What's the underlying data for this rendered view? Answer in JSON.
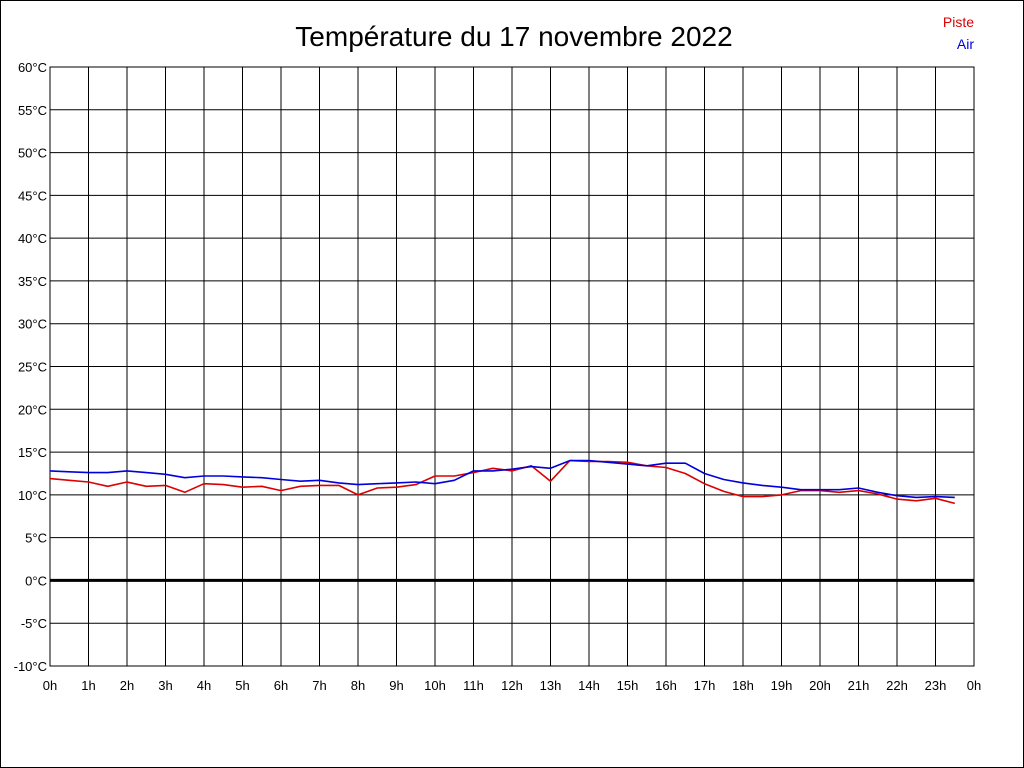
{
  "chart_data": {
    "type": "line",
    "title": "Température du 17 novembre 2022",
    "xlabel": "",
    "ylabel": "",
    "xlim": [
      0,
      24
    ],
    "ylim": [
      -10,
      60
    ],
    "grid": true,
    "legend_position": "top-right",
    "y_ticks": [
      -10,
      -5,
      0,
      5,
      10,
      15,
      20,
      25,
      30,
      35,
      40,
      45,
      50,
      55,
      60
    ],
    "y_tick_labels": [
      "-10°C",
      "-5°C",
      "0°C",
      "5°C",
      "10°C",
      "15°C",
      "20°C",
      "25°C",
      "30°C",
      "35°C",
      "40°C",
      "45°C",
      "50°C",
      "55°C",
      "60°C"
    ],
    "x_ticks": [
      0,
      1,
      2,
      3,
      4,
      5,
      6,
      7,
      8,
      9,
      10,
      11,
      12,
      13,
      14,
      15,
      16,
      17,
      18,
      19,
      20,
      21,
      22,
      23,
      24
    ],
    "x_tick_labels": [
      "0h",
      "1h",
      "2h",
      "3h",
      "4h",
      "5h",
      "6h",
      "7h",
      "8h",
      "9h",
      "10h",
      "11h",
      "12h",
      "13h",
      "14h",
      "15h",
      "16h",
      "17h",
      "18h",
      "19h",
      "20h",
      "21h",
      "22h",
      "23h",
      "0h"
    ],
    "series": [
      {
        "name": "Piste",
        "color": "#dd0000",
        "x": [
          0,
          0.5,
          1,
          1.5,
          2,
          2.5,
          3,
          3.5,
          4,
          4.5,
          5,
          5.5,
          6,
          6.5,
          7,
          7.5,
          8,
          8.5,
          9,
          9.5,
          10,
          10.5,
          11,
          11.5,
          12,
          12.5,
          13,
          13.5,
          14,
          14.5,
          15,
          15.5,
          16,
          16.5,
          17,
          17.5,
          18,
          18.5,
          19,
          19.5,
          20,
          20.5,
          21,
          21.5,
          22,
          22.5,
          23,
          23.5
        ],
        "y": [
          11.9,
          11.7,
          11.5,
          11.0,
          11.5,
          11.0,
          11.1,
          10.3,
          11.3,
          11.2,
          10.9,
          11.0,
          10.5,
          11.0,
          11.1,
          11.1,
          10.0,
          10.8,
          10.9,
          11.2,
          12.2,
          12.2,
          12.6,
          13.1,
          12.8,
          13.4,
          11.6,
          14.0,
          13.9,
          13.9,
          13.8,
          13.4,
          13.2,
          12.5,
          11.3,
          10.4,
          9.8,
          9.8,
          10.0,
          10.5,
          10.5,
          10.3,
          10.5,
          10.1,
          9.5,
          9.3,
          9.6,
          9.0
        ]
      },
      {
        "name": "Air",
        "color": "#0000dd",
        "x": [
          0,
          0.5,
          1,
          1.5,
          2,
          2.5,
          3,
          3.5,
          4,
          4.5,
          5,
          5.5,
          6,
          6.5,
          7,
          7.5,
          8,
          8.5,
          9,
          9.5,
          10,
          10.5,
          11,
          11.5,
          12,
          12.5,
          13,
          13.5,
          14,
          14.5,
          15,
          15.5,
          16,
          16.5,
          17,
          17.5,
          18,
          18.5,
          19,
          19.5,
          20,
          20.5,
          21,
          21.5,
          22,
          22.5,
          23,
          23.5
        ],
        "y": [
          12.8,
          12.7,
          12.6,
          12.6,
          12.8,
          12.6,
          12.4,
          12.0,
          12.2,
          12.2,
          12.1,
          12.0,
          11.8,
          11.6,
          11.7,
          11.4,
          11.2,
          11.3,
          11.4,
          11.5,
          11.3,
          11.7,
          12.8,
          12.8,
          13.0,
          13.3,
          13.1,
          14.0,
          14.0,
          13.8,
          13.6,
          13.4,
          13.7,
          13.7,
          12.5,
          11.8,
          11.4,
          11.1,
          10.9,
          10.6,
          10.6,
          10.6,
          10.8,
          10.3,
          9.9,
          9.7,
          9.8,
          9.7
        ]
      }
    ]
  }
}
